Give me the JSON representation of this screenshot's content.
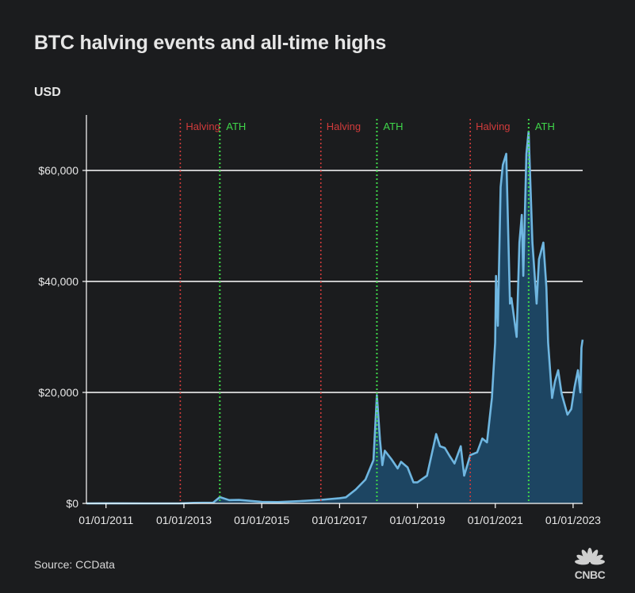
{
  "title": "BTC halving events and all-time highs",
  "unit_label": "USD",
  "source": "Source: CCData",
  "logo_text": "CNBC",
  "colors": {
    "background": "#1b1c1e",
    "line": "#6fb6e0",
    "fill": "#1d4562",
    "halving": "#d13b3b",
    "ath": "#3fd64a",
    "grid": "#ffffff"
  },
  "chart_data": {
    "type": "area",
    "title": "BTC halving events and all-time highs",
    "ylabel": "USD",
    "xlabel": "",
    "ylim": [
      0,
      70000
    ],
    "xlim": [
      "2010-07-01",
      "2023-04-01"
    ],
    "y_ticks": [
      0,
      20000,
      40000,
      60000
    ],
    "y_tick_labels": [
      "$0",
      "$20,000",
      "$40,000",
      "$60,000"
    ],
    "x_ticks": [
      "2011-01-01",
      "2013-01-01",
      "2015-01-01",
      "2017-01-01",
      "2019-01-01",
      "2021-01-01",
      "2023-01-01"
    ],
    "x_tick_labels": [
      "01/01/2011",
      "01/01/2013",
      "01/01/2015",
      "01/01/2017",
      "01/01/2019",
      "01/01/2021",
      "01/01/2023"
    ],
    "grid": "horizontal",
    "events": [
      {
        "type": "halving",
        "label": "Halving",
        "date": "2012-11-28"
      },
      {
        "type": "ath",
        "label": "ATH",
        "date": "2013-12-04"
      },
      {
        "type": "halving",
        "label": "Halving",
        "date": "2016-07-09"
      },
      {
        "type": "ath",
        "label": "ATH",
        "date": "2017-12-17"
      },
      {
        "type": "halving",
        "label": "Halving",
        "date": "2020-05-11"
      },
      {
        "type": "ath",
        "label": "ATH",
        "date": "2021-11-10"
      }
    ],
    "series": [
      {
        "name": "BTC price (USD)",
        "x": [
          "2010-07-01",
          "2011-06-01",
          "2012-01-01",
          "2012-11-28",
          "2013-04-01",
          "2013-10-01",
          "2013-12-04",
          "2014-03-01",
          "2014-06-01",
          "2015-01-01",
          "2015-06-01",
          "2016-01-01",
          "2016-07-09",
          "2017-01-01",
          "2017-03-01",
          "2017-06-01",
          "2017-09-01",
          "2017-11-15",
          "2017-12-17",
          "2018-01-15",
          "2018-02-06",
          "2018-03-01",
          "2018-05-01",
          "2018-06-30",
          "2018-08-01",
          "2018-10-01",
          "2018-11-25",
          "2019-01-01",
          "2019-04-01",
          "2019-06-26",
          "2019-08-01",
          "2019-09-15",
          "2019-11-01",
          "2019-12-15",
          "2020-02-12",
          "2020-03-15",
          "2020-05-11",
          "2020-07-15",
          "2020-09-01",
          "2020-10-15",
          "2020-11-30",
          "2020-12-31",
          "2021-01-08",
          "2021-01-25",
          "2021-02-20",
          "2021-03-13",
          "2021-04-14",
          "2021-05-19",
          "2021-06-01",
          "2021-07-20",
          "2021-08-15",
          "2021-09-07",
          "2021-09-21",
          "2021-10-20",
          "2021-11-10",
          "2021-12-15",
          "2022-01-24",
          "2022-02-15",
          "2022-03-28",
          "2022-04-25",
          "2022-05-12",
          "2022-06-18",
          "2022-07-15",
          "2022-08-14",
          "2022-09-15",
          "2022-11-09",
          "2022-12-15",
          "2023-01-15",
          "2023-02-15",
          "2023-03-10",
          "2023-03-20",
          "2023-03-31"
        ],
        "values": [
          0,
          15,
          6,
          12,
          100,
          130,
          1150,
          600,
          630,
          280,
          250,
          430,
          650,
          950,
          1100,
          2500,
          4300,
          7800,
          19500,
          11500,
          6900,
          9500,
          8000,
          6300,
          7500,
          6500,
          3800,
          3800,
          5000,
          12500,
          10300,
          10000,
          8500,
          7200,
          10300,
          5000,
          8700,
          9200,
          11700,
          11000,
          19000,
          29000,
          41000,
          32000,
          57000,
          61000,
          63000,
          36000,
          37000,
          30000,
          47000,
          52000,
          41000,
          63000,
          67000,
          47000,
          36000,
          44000,
          47000,
          39000,
          29000,
          19000,
          22000,
          24000,
          19800,
          16000,
          17000,
          21000,
          24000,
          20000,
          28000,
          29500
        ]
      }
    ]
  }
}
